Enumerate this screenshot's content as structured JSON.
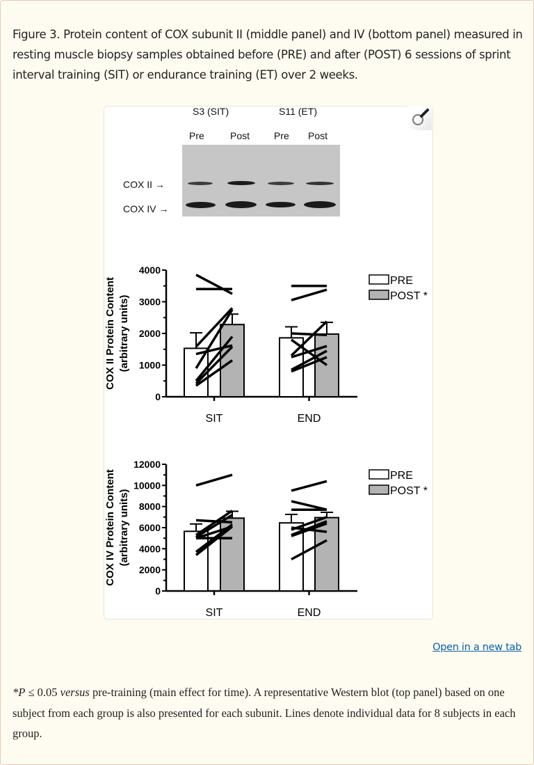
{
  "caption": {
    "text": "Figure 3. Protein content of COX subunit II (middle panel) and IV (bottom panel) measured in resting muscle biopsy samples obtained before (PRE) and after (POST) 6 sessions of sprint interval training (SIT) or endurance training (ET) over 2 weeks."
  },
  "toolbar": {
    "zoom_icon": "magnifier-icon",
    "open_link_label": "Open in a new tab"
  },
  "blot": {
    "subjects": [
      "S3 (SIT)",
      "S11 (ET)"
    ],
    "lanes": [
      "Pre",
      "Post",
      "Pre",
      "Post"
    ],
    "rows": [
      "COX II →",
      "COX IV →"
    ]
  },
  "colors": {
    "pre_fill": "#ffffff",
    "post_fill": "#b3b3b3",
    "ink": "#000000",
    "link": "#0a5ea8",
    "card_bg": "#fefcf0",
    "card_border": "#eac6b4"
  },
  "footnote": {
    "star_p": "*P",
    "condition": " ≤ 0.05 ",
    "versus": "versus",
    "rest": " pre-training (main effect for time). A representative Western blot (top panel) based on one subject from each group is also presented for each subunit. Lines denote individual data for 8 subjects in each group."
  },
  "chart_data": [
    {
      "type": "bar",
      "title": "COX II",
      "ylabel": "COX II Protein Content (arbitrary units)",
      "xlabel": "",
      "categories": [
        "SIT",
        "END"
      ],
      "ylim": [
        0,
        4000
      ],
      "yticks": [
        0,
        1000,
        2000,
        3000,
        4000
      ],
      "legend": [
        "PRE",
        "POST *"
      ],
      "legend_position": "upper right",
      "grid": false,
      "series": [
        {
          "name": "PRE",
          "values": [
            1530,
            1860
          ],
          "error": [
            490,
            350
          ]
        },
        {
          "name": "POST *",
          "values": [
            2280,
            1980
          ],
          "error": [
            330,
            370
          ]
        }
      ],
      "individual_lines": {
        "SIT": [
          [
            3850,
            3250
          ],
          [
            3400,
            3400
          ],
          [
            1580,
            2800
          ],
          [
            1350,
            1620
          ],
          [
            900,
            2750
          ],
          [
            500,
            1900
          ],
          [
            420,
            1580
          ],
          [
            350,
            1150
          ]
        ],
        "END": [
          [
            3500,
            3500
          ],
          [
            3050,
            3380
          ],
          [
            2000,
            1950
          ],
          [
            1800,
            1000
          ],
          [
            1300,
            2380
          ],
          [
            1250,
            1600
          ],
          [
            850,
            1450
          ],
          [
            800,
            1250
          ]
        ]
      }
    },
    {
      "type": "bar",
      "title": "COX IV",
      "ylabel": "COX IV Protein Content (arbitrary units)",
      "xlabel": "",
      "categories": [
        "SIT",
        "END"
      ],
      "ylim": [
        0,
        12000
      ],
      "yticks": [
        0,
        2000,
        4000,
        6000,
        8000,
        10000,
        12000
      ],
      "legend": [
        "PRE",
        "POST *"
      ],
      "legend_position": "upper right",
      "grid": false,
      "series": [
        {
          "name": "PRE",
          "values": [
            5650,
            6450
          ],
          "error": [
            700,
            800
          ]
        },
        {
          "name": "POST *",
          "values": [
            6900,
            6950
          ],
          "error": [
            650,
            500
          ]
        }
      ],
      "individual_lines": {
        "SIT": [
          [
            10000,
            11000
          ],
          [
            6700,
            6500
          ],
          [
            5300,
            7600
          ],
          [
            5100,
            7200
          ],
          [
            5000,
            5000
          ],
          [
            5000,
            6100
          ],
          [
            3700,
            6300
          ],
          [
            3400,
            6100
          ]
        ],
        "END": [
          [
            9500,
            10400
          ],
          [
            8500,
            7700
          ],
          [
            7700,
            7700
          ],
          [
            6000,
            5600
          ],
          [
            5800,
            7000
          ],
          [
            5300,
            6600
          ],
          [
            5200,
            6400
          ],
          [
            3000,
            4800
          ]
        ]
      }
    }
  ]
}
